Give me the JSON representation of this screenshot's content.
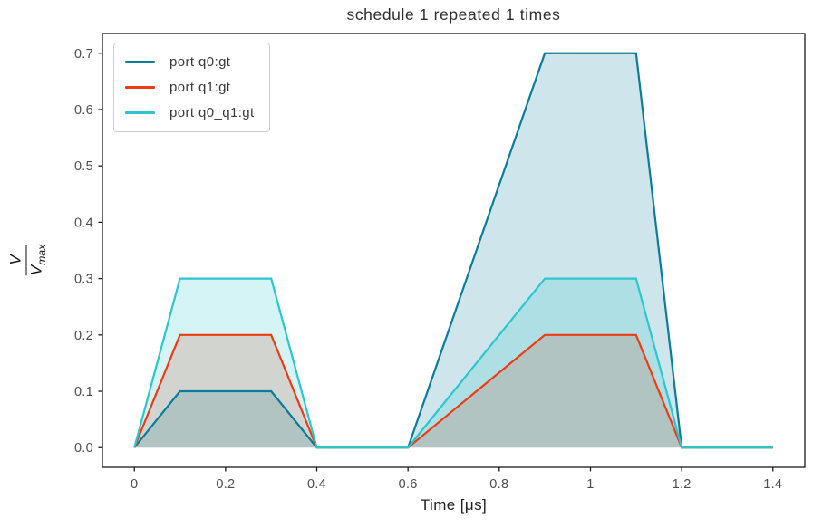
{
  "chart_data": {
    "type": "area",
    "title": "schedule 1 repeated 1 times",
    "xlabel": "Time [μs]",
    "ylabel": "V/V_max",
    "ylabel_parts": {
      "numerator": "V",
      "denominator_base": "V",
      "denominator_sub": "max"
    },
    "xlim": [
      -0.07,
      1.47
    ],
    "ylim": [
      -0.035,
      0.735
    ],
    "xticks": {
      "values": [
        0,
        0.2,
        0.4,
        0.6,
        0.8,
        1.0,
        1.2,
        1.4
      ],
      "labels": [
        "0",
        "0.2",
        "0.4",
        "0.6",
        "0.8",
        "1",
        "1.2",
        "1.4"
      ]
    },
    "yticks": {
      "values": [
        0.0,
        0.1,
        0.2,
        0.3,
        0.4,
        0.5,
        0.6,
        0.7
      ],
      "labels": [
        "0.0",
        "0.1",
        "0.2",
        "0.3",
        "0.4",
        "0.5",
        "0.6",
        "0.7"
      ]
    },
    "grid": false,
    "legend_position": "upper-left",
    "fill_opacity": 0.2,
    "axis_color": "#1a1a1a",
    "tick_label_color": "#4d4d4d",
    "series": [
      {
        "name": "port q0:gt",
        "color": "#0b7c99",
        "x": [
          0,
          0.1,
          0.3,
          0.4,
          0.6,
          0.9,
          1.1,
          1.2,
          1.4
        ],
        "y": [
          0,
          0.1,
          0.1,
          0.0,
          0.0,
          0.7,
          0.7,
          0.0,
          0.0
        ]
      },
      {
        "name": "port q1:gt",
        "color": "#ee3b13",
        "x": [
          0,
          0.1,
          0.3,
          0.4,
          0.6,
          0.9,
          1.1,
          1.2,
          1.4
        ],
        "y": [
          0,
          0.2,
          0.2,
          0.0,
          0.0,
          0.2,
          0.2,
          0.0,
          0.0
        ]
      },
      {
        "name": "port q0_q1:gt",
        "color": "#2cc6ce",
        "x": [
          0,
          0.1,
          0.3,
          0.4,
          0.6,
          0.9,
          1.1,
          1.2,
          1.4
        ],
        "y": [
          0,
          0.3,
          0.3,
          0.0,
          0.0,
          0.3,
          0.3,
          0.0,
          0.0
        ]
      }
    ]
  }
}
